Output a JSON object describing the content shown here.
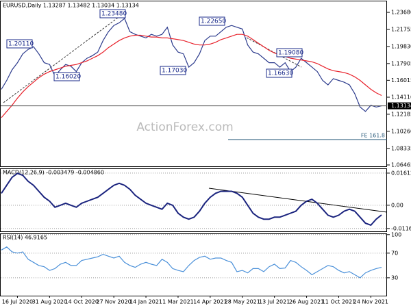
{
  "chart_data": [
    {
      "type": "line",
      "title": "EURUSD,Daily  1.13287 1.13482 1.13034 1.13134",
      "watermark": "ActionForex.com",
      "categories": [
        null,
        null,
        null,
        "16 Jul 2020",
        null,
        null,
        null,
        null,
        null,
        "31 Aug 2020",
        null,
        null,
        null,
        null,
        null,
        "14 Oct 2020",
        null,
        null,
        null,
        null,
        null,
        "27 Nov 2020",
        null,
        null,
        null,
        null,
        null,
        "14 Jan 2021",
        null,
        null,
        null,
        null,
        null,
        "1 Mar 2021",
        null,
        null,
        null,
        null,
        null,
        "14 Apr 2021",
        null,
        null,
        null,
        null,
        null,
        "28 May 2021",
        null,
        null,
        null,
        null,
        null,
        "13 Jul 2021",
        null,
        null,
        null,
        null,
        null,
        "26 Aug 2021",
        null,
        null,
        null,
        null,
        null,
        "11 Oct 2021",
        null,
        null,
        null,
        null,
        null,
        "24 Nov 2021",
        null,
        null
      ],
      "series": [
        {
          "color": "#2b3a8c",
          "values": [
            1.15,
            1.16,
            1.172,
            1.18,
            1.19,
            1.195,
            1.198,
            1.19,
            1.18,
            1.178,
            1.165,
            1.172,
            1.178,
            1.176,
            1.17,
            1.18,
            1.185,
            1.188,
            1.192,
            1.205,
            1.215,
            1.222,
            1.225,
            1.23,
            1.215,
            1.212,
            1.21,
            1.208,
            1.212,
            1.21,
            1.212,
            1.22,
            1.2,
            1.192,
            1.19,
            1.175,
            1.18,
            1.19,
            1.205,
            1.21,
            1.21,
            1.215,
            1.22,
            1.222,
            1.22,
            1.218,
            1.2,
            1.192,
            1.19,
            1.185,
            1.18,
            1.18,
            1.175,
            1.18,
            1.17,
            1.175,
            1.185,
            1.18,
            1.175,
            1.17,
            1.16,
            1.155,
            1.162,
            1.16,
            1.158,
            1.155,
            1.145,
            1.13,
            1.125,
            1.132,
            1.13,
            1.13134
          ]
        },
        {
          "color": "#e8202a",
          "values": [
            1.118,
            1.125,
            1.132,
            1.14,
            1.147,
            1.153,
            1.158,
            1.163,
            1.167,
            1.17,
            1.172,
            1.174,
            1.176,
            1.177,
            1.178,
            1.18,
            1.182,
            1.185,
            1.188,
            1.192,
            1.197,
            1.201,
            1.205,
            1.208,
            1.21,
            1.211,
            1.211,
            1.21,
            1.209,
            1.209,
            1.208,
            1.208,
            1.207,
            1.206,
            1.205,
            1.203,
            1.201,
            1.2,
            1.2,
            1.201,
            1.203,
            1.206,
            1.208,
            1.21,
            1.212,
            1.212,
            1.21,
            1.206,
            1.202,
            1.198,
            1.194,
            1.191,
            1.189,
            1.187,
            1.185,
            1.184,
            1.183,
            1.182,
            1.181,
            1.179,
            1.176,
            1.173,
            1.171,
            1.17,
            1.169,
            1.167,
            1.164,
            1.16,
            1.155,
            1.15,
            1.146,
            1.143
          ]
        }
      ],
      "annotations": [
        "1.20110",
        "1.16020",
        "1.23480",
        "1.17030",
        "1.22650",
        "1.19080",
        "1.16630"
      ],
      "last_price": 1.13134,
      "fe_level": {
        "value": 1.0933,
        "label": "FE 161.8"
      },
      "ylim": [
        1.0631,
        1.2492
      ],
      "yticks": [
        {
          "value": 1.2368,
          "label": "1.23680"
        },
        {
          "value": 1.21755,
          "label": "1.21755"
        },
        {
          "value": 1.1983,
          "label": "1.19830"
        },
        {
          "value": 1.17905,
          "label": "1.17905"
        },
        {
          "value": 1.16015,
          "label": "1.16015"
        },
        {
          "value": 1.1411,
          "label": "1.14110"
        },
        {
          "value": 1.12185,
          "label": "1.12185"
        },
        {
          "value": 1.1026,
          "label": "1.10260"
        },
        {
          "value": 1.08335,
          "label": "1.08335"
        },
        {
          "value": 1.06465,
          "label": "1.06465"
        }
      ]
    },
    {
      "type": "line",
      "title": "MACD(12,26,9) -0.003479 -0.004860",
      "series": [
        {
          "color": "#1a237e",
          "values": [
            0.006,
            0.01,
            0.014,
            0.016,
            0.015,
            0.012,
            0.01,
            0.007,
            0.004,
            0.002,
            -0.001,
            0,
            0.001,
            0,
            -0.001,
            0.001,
            0.002,
            0.003,
            0.004,
            0.006,
            0.008,
            0.01,
            0.011,
            0.01,
            0.008,
            0.005,
            0.003,
            0.001,
            0,
            -0.001,
            -0.002,
            0.001,
            0,
            -0.004,
            -0.006,
            -0.007,
            -0.006,
            -0.003,
            0.001,
            0.004,
            0.006,
            0.007,
            0.007,
            0.007,
            0.006,
            0.004,
            0,
            -0.004,
            -0.006,
            -0.007,
            -0.007,
            -0.006,
            -0.006,
            -0.005,
            -0.004,
            -0.003,
            0,
            0.002,
            0.003,
            0.001,
            -0.002,
            -0.005,
            -0.006,
            -0.005,
            -0.003,
            -0.002,
            -0.003,
            -0.006,
            -0.009,
            -0.01,
            -0.007,
            -0.00486
          ]
        }
      ],
      "ylim": [
        -0.0131,
        0.0185
      ],
      "yticks": [
        0.016122,
        {
          "value": 0,
          "label": "0.00"
        },
        -0.011681
      ]
    },
    {
      "type": "line",
      "title": "RSI(14) 46.9165",
      "series": [
        {
          "color": "#4a90d9",
          "values": [
            75,
            80,
            72,
            70,
            72,
            60,
            55,
            50,
            48,
            42,
            45,
            52,
            55,
            50,
            50,
            58,
            60,
            62,
            64,
            68,
            65,
            62,
            65,
            55,
            50,
            47,
            52,
            55,
            52,
            50,
            60,
            55,
            45,
            42,
            40,
            50,
            58,
            63,
            65,
            60,
            62,
            62,
            58,
            55,
            40,
            42,
            38,
            45,
            45,
            40,
            48,
            52,
            45,
            46,
            58,
            55,
            48,
            42,
            35,
            40,
            45,
            50,
            48,
            42,
            38,
            40,
            35,
            30,
            38,
            42,
            45,
            46.9165
          ]
        }
      ],
      "ylim": [
        1,
        102
      ],
      "yticks": [
        100,
        70,
        30
      ]
    }
  ]
}
